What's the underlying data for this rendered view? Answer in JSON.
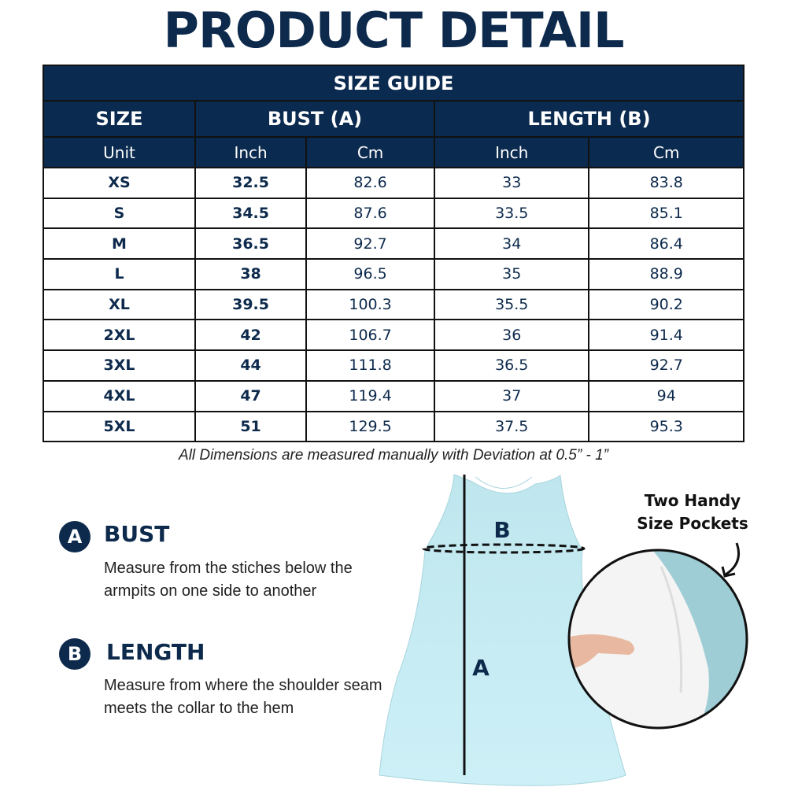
{
  "title": "PRODUCT DETAIL",
  "table": {
    "caption": "SIZE GUIDE",
    "headers": {
      "size": "SIZE",
      "bust": "BUST (A)",
      "length": "LENGTH (B)"
    },
    "units": [
      "Unit",
      "Inch",
      "Cm",
      "Inch",
      "Cm"
    ],
    "rows": [
      [
        "XS",
        "32.5",
        "82.6",
        "33",
        "83.8"
      ],
      [
        "S",
        "34.5",
        "87.6",
        "33.5",
        "85.1"
      ],
      [
        "M",
        "36.5",
        "92.7",
        "34",
        "86.4"
      ],
      [
        "L",
        "38",
        "96.5",
        "35",
        "88.9"
      ],
      [
        "XL",
        "39.5",
        "100.3",
        "35.5",
        "90.2"
      ],
      [
        "2XL",
        "42",
        "106.7",
        "36",
        "91.4"
      ],
      [
        "3XL",
        "44",
        "111.8",
        "36.5",
        "92.7"
      ],
      [
        "4XL",
        "47",
        "119.4",
        "37",
        "94"
      ],
      [
        "5XL",
        "51",
        "129.5",
        "37.5",
        "95.3"
      ]
    ]
  },
  "note": "All Dimensions are measured manually with Deviation at 0.5” - 1”",
  "measures": [
    {
      "badge": "A",
      "heading": "BUST",
      "description": "Measure from the stiches below the armpits on one side to another"
    },
    {
      "badge": "B",
      "heading": "LENGTH",
      "description": "Measure from where the shoulder seam meets the collar to the hem"
    }
  ],
  "diagram": {
    "label_horizontal": "B",
    "label_vertical": "A",
    "pockets_callout": "Two Handy Size Pockets"
  },
  "colors": {
    "navy": "#0b2a4f",
    "dress": "#c6ebf2"
  }
}
